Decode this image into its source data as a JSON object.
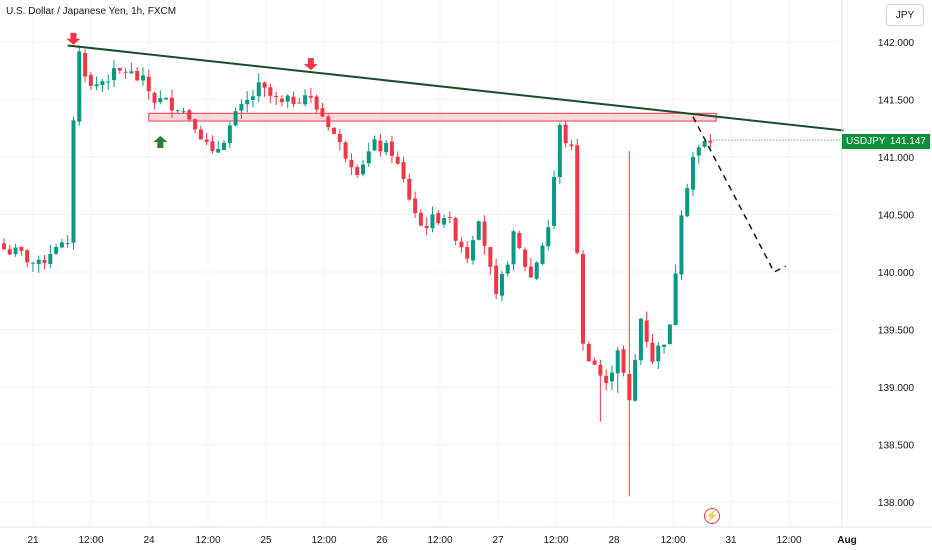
{
  "header": {
    "title": "U.S. Dollar / Japanese Yen, 1h, FXCM"
  },
  "currency_button": {
    "label": "JPY"
  },
  "price_tag": {
    "symbol": "USDJPY",
    "price": "141.147"
  },
  "icons": {
    "alert": "lightning-icon"
  },
  "colors": {
    "up": "#089981",
    "down": "#f23645",
    "trend": "#1b4d2b",
    "zone": "#f23645",
    "tag": "#0e8f3a"
  },
  "chart_data": {
    "type": "candlestick",
    "y_axis": {
      "min": 137.9,
      "max": 142.2,
      "ticks": [
        "142.000",
        "141.500",
        "141.000",
        "140.500",
        "140.000",
        "139.500",
        "139.000",
        "138.500",
        "138.000"
      ]
    },
    "x_axis": {
      "ticks": [
        "21",
        "12:00",
        "24",
        "12:00",
        "25",
        "12:00",
        "26",
        "12:00",
        "27",
        "12:00",
        "28",
        "12:00",
        "31",
        "12:00",
        "Aug"
      ]
    },
    "trendline": {
      "from": {
        "bar": 11,
        "price": 141.97
      },
      "to": {
        "bar": 145,
        "price": 141.23
      }
    },
    "resistance_zone": {
      "bar_start": 25,
      "bar_end": 123,
      "price_top": 141.38,
      "price_bottom": 141.33
    },
    "arrows": [
      {
        "bar": 12,
        "price": 142.08,
        "direction": "down",
        "color": "#f23645"
      },
      {
        "bar": 53,
        "price": 141.86,
        "direction": "up_reverse",
        "color": "#f23645"
      },
      {
        "bar": 27,
        "price": 141.2,
        "direction": "up",
        "color": "#2e7d32"
      }
    ],
    "projection": [
      {
        "bar": 119,
        "price": 141.35
      },
      {
        "bar": 133,
        "price": 140.0
      },
      {
        "bar": 135,
        "price": 140.05
      }
    ],
    "last_price": 141.147,
    "series": []
  }
}
